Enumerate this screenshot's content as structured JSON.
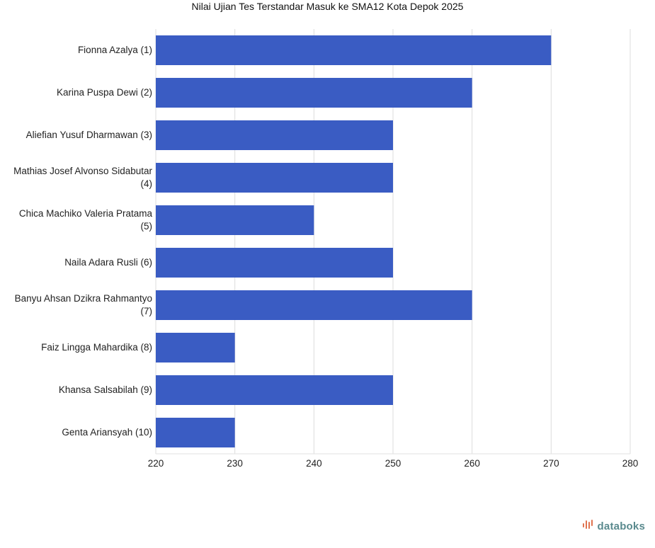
{
  "chart_data": {
    "type": "bar",
    "orientation": "horizontal",
    "title": "Nilai Ujian Tes Terstandar Masuk ke SMA12 Kota Depok 2025",
    "categories": [
      "Fionna Azalya (1)",
      "Karina Puspa Dewi (2)",
      "Aliefian Yusuf Dharmawan (3)",
      "Mathias Josef Alvonso Sidabutar (4)",
      "Chica Machiko Valeria Pratama (5)",
      "Naila Adara Rusli (6)",
      "Banyu Ahsan Dzikra Rahmantyo (7)",
      "Faiz Lingga Mahardika (8)",
      "Khansa Salsabilah (9)",
      "Genta Ariansyah (10)"
    ],
    "values": [
      270,
      260,
      250,
      250,
      240,
      250,
      260,
      230,
      250,
      230
    ],
    "xlim": [
      220,
      280
    ],
    "xticks": [
      220,
      230,
      240,
      250,
      260,
      270,
      280
    ],
    "grid": true,
    "bar_color": "#3a5cc3"
  },
  "branding": {
    "logo_icon": "databoks-bars-icon",
    "logo_text": "databoks",
    "logo_color": "#5a8a8e",
    "logo_icon_color": "#e0734f"
  }
}
